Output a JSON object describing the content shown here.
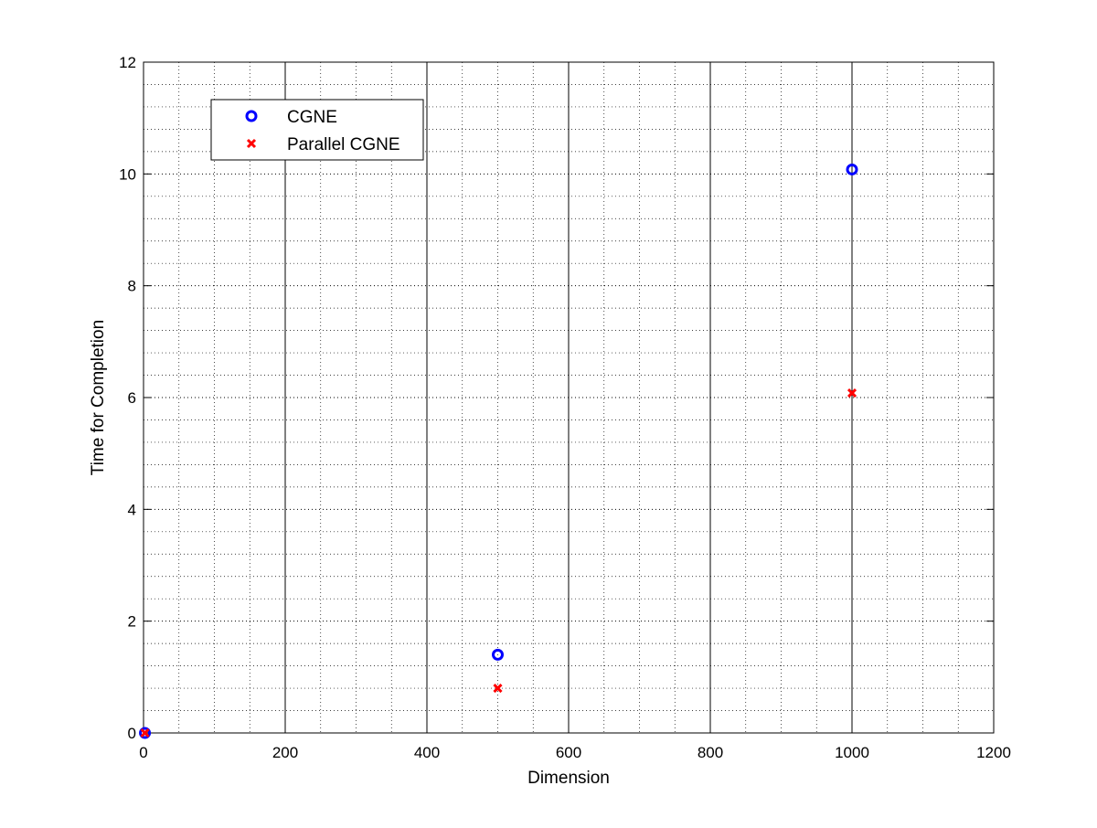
{
  "chart_data": {
    "type": "scatter",
    "title": "",
    "xlabel": "Dimension",
    "ylabel": "Time for Completion",
    "xlim": [
      0,
      1200
    ],
    "ylim": [
      0,
      12
    ],
    "xticks": [
      "0",
      "200",
      "400",
      "600",
      "800",
      "1000",
      "1200"
    ],
    "yticks": [
      "0",
      "2",
      "4",
      "6",
      "8",
      "10",
      "12"
    ],
    "grid": true,
    "minor_grid": true,
    "legend_position": "top-left",
    "series": [
      {
        "name": "CGNE",
        "marker": "circle",
        "color": "#0000ff",
        "x": [
          2,
          500,
          1000
        ],
        "y": [
          0.0,
          1.4,
          10.08
        ]
      },
      {
        "name": "Parallel CGNE",
        "marker": "x",
        "color": "#ff0000",
        "x": [
          2,
          500,
          1000
        ],
        "y": [
          0.0,
          0.8,
          6.08
        ]
      }
    ]
  }
}
